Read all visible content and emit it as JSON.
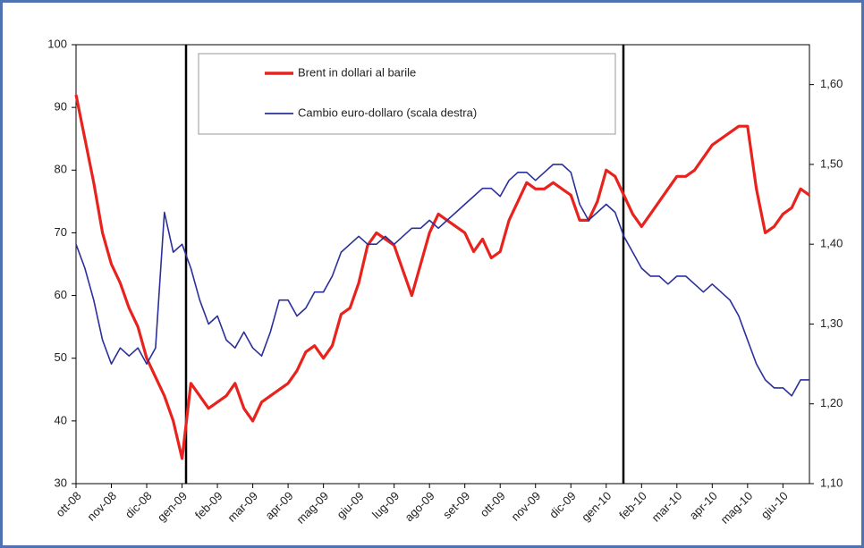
{
  "chart_data": {
    "type": "line",
    "categories": [
      "ott-08",
      null,
      null,
      null,
      "nov-08",
      null,
      null,
      null,
      "dic-08",
      null,
      null,
      null,
      "gen-09",
      null,
      null,
      null,
      "feb-09",
      null,
      null,
      null,
      "mar-09",
      null,
      null,
      null,
      "apr-09",
      null,
      null,
      null,
      "mag-09",
      null,
      null,
      null,
      "giu-09",
      null,
      null,
      null,
      "lug-09",
      null,
      null,
      null,
      "ago-09",
      null,
      null,
      null,
      "set-09",
      null,
      null,
      null,
      "ott-09",
      null,
      null,
      null,
      "nov-09",
      null,
      null,
      null,
      "dic-09",
      null,
      null,
      null,
      "gen-10",
      null,
      null,
      null,
      "feb-10",
      null,
      null,
      null,
      "mar-10",
      null,
      null,
      null,
      "apr-10",
      null,
      null,
      null,
      "mag-10",
      null,
      null,
      null,
      "giu-10",
      null,
      null,
      null
    ],
    "series": [
      {
        "name": "Brent in dollari al barile",
        "color": "#e8231e",
        "values": [
          92,
          85,
          78,
          70,
          65,
          62,
          58,
          55,
          50,
          47,
          44,
          40,
          34,
          46,
          44,
          42,
          43,
          44,
          46,
          42,
          40,
          43,
          44,
          45,
          46,
          48,
          51,
          52,
          50,
          52,
          57,
          58,
          62,
          68,
          70,
          69,
          68,
          64,
          60,
          65,
          70,
          73,
          72,
          71,
          70,
          67,
          69,
          66,
          67,
          72,
          75,
          78,
          77,
          77,
          78,
          77,
          76,
          72,
          72,
          75,
          80,
          79,
          76,
          73,
          71,
          73,
          75,
          77,
          79,
          79,
          80,
          82,
          84,
          85,
          86,
          87,
          87,
          77,
          70,
          71,
          73,
          74,
          77,
          76
        ]
      },
      {
        "name": "Cambio euro-dollaro (scala destra)",
        "color": "#2b2f9a",
        "axis": "y2",
        "values": [
          1.4,
          1.37,
          1.33,
          1.28,
          1.25,
          1.27,
          1.26,
          1.27,
          1.25,
          1.27,
          1.44,
          1.39,
          1.4,
          1.37,
          1.33,
          1.3,
          1.31,
          1.28,
          1.27,
          1.29,
          1.27,
          1.26,
          1.29,
          1.33,
          1.33,
          1.31,
          1.32,
          1.34,
          1.34,
          1.36,
          1.39,
          1.4,
          1.41,
          1.4,
          1.4,
          1.41,
          1.4,
          1.41,
          1.42,
          1.42,
          1.43,
          1.42,
          1.43,
          1.44,
          1.45,
          1.46,
          1.47,
          1.47,
          1.46,
          1.48,
          1.49,
          1.49,
          1.48,
          1.49,
          1.5,
          1.5,
          1.49,
          1.45,
          1.43,
          1.44,
          1.45,
          1.44,
          1.41,
          1.39,
          1.37,
          1.36,
          1.36,
          1.35,
          1.36,
          1.36,
          1.35,
          1.34,
          1.35,
          1.34,
          1.33,
          1.31,
          1.28,
          1.25,
          1.23,
          1.22,
          1.22,
          1.21,
          1.23,
          1.23
        ]
      }
    ],
    "ylim": [
      30,
      100
    ],
    "yticks": [
      30,
      40,
      50,
      60,
      70,
      80,
      90,
      100
    ],
    "y2lim": [
      1.1,
      1.65
    ],
    "y2ticks": [
      {
        "value": 1.1,
        "label": "1,10"
      },
      {
        "value": 1.2,
        "label": "1,20"
      },
      {
        "value": 1.3,
        "label": "1,30"
      },
      {
        "value": 1.4,
        "label": "1,40"
      },
      {
        "value": 1.5,
        "label": "1,50"
      },
      {
        "value": 1.6,
        "label": "1,60"
      }
    ],
    "grid": false
  }
}
